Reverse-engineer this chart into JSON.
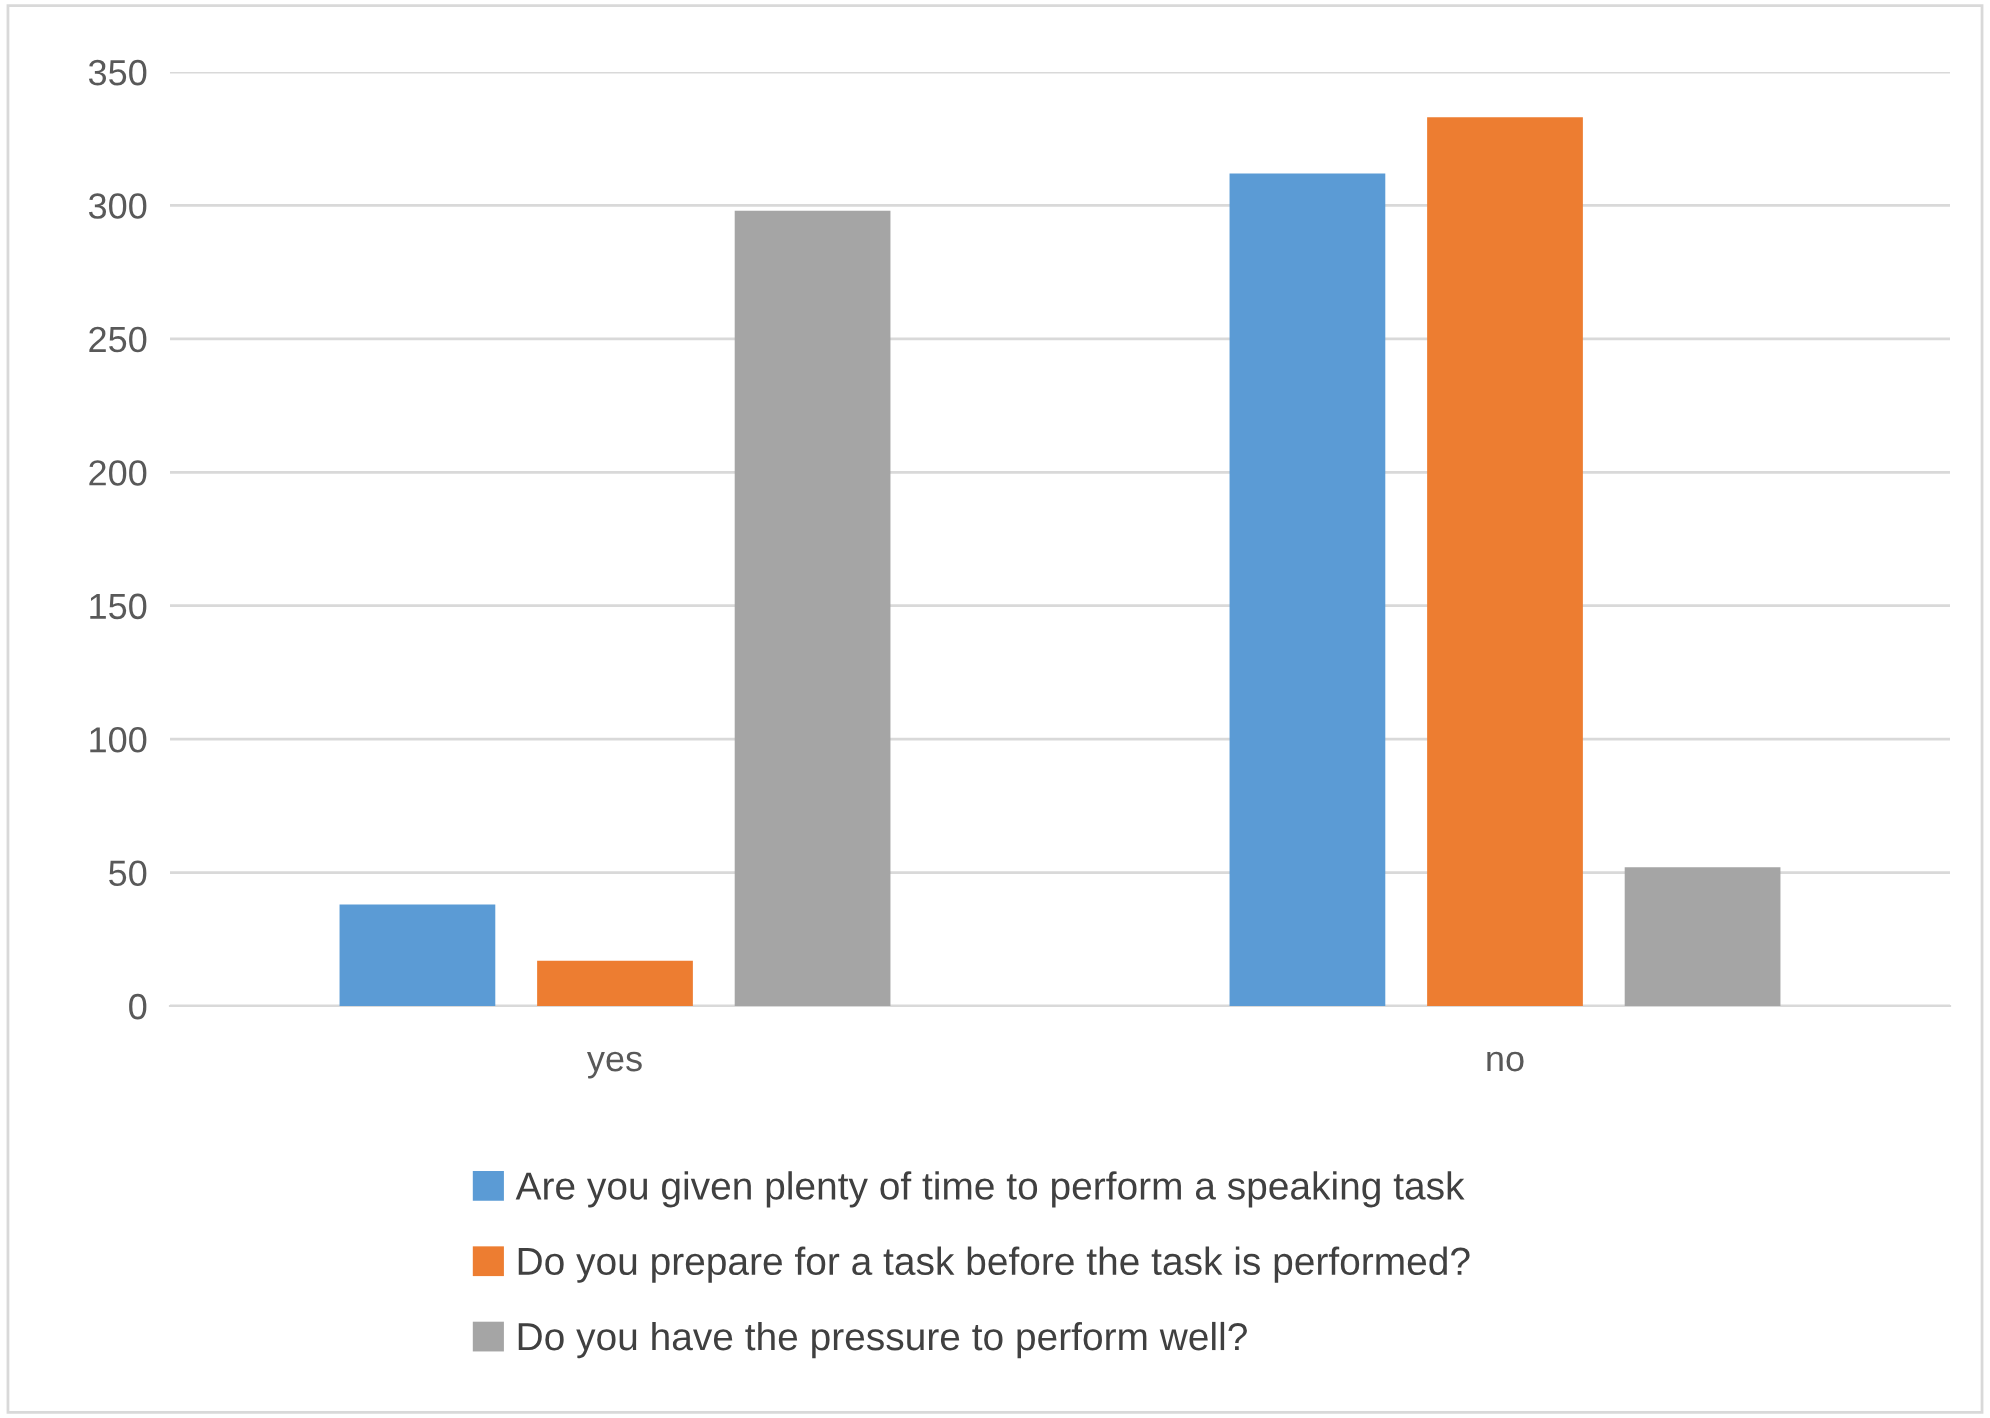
{
  "chart_data": {
    "type": "bar",
    "categories": [
      "yes",
      "no"
    ],
    "series": [
      {
        "name": "Are you given plenty of time to perform a speaking task",
        "color": "#5b9bd5",
        "values": [
          38,
          312
        ]
      },
      {
        "name": "Do you prepare for a task before the task is performed?",
        "color": "#ed7d31",
        "values": [
          17,
          333
        ]
      },
      {
        "name": "Do you have the pressure to perform well?",
        "color": "#a5a5a5",
        "values": [
          298,
          52
        ]
      }
    ],
    "ylim": [
      0,
      350
    ],
    "yticks": [
      0,
      50,
      100,
      150,
      200,
      250,
      300,
      350
    ],
    "grid": "y",
    "legend": "bottom"
  }
}
